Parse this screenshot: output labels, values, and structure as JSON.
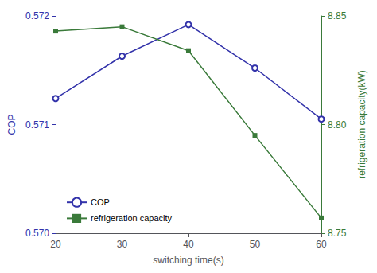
{
  "chart_data": {
    "type": "line",
    "x": [
      20,
      30,
      40,
      50,
      60
    ],
    "series": [
      {
        "name": "COP",
        "color": "#3333aa",
        "marker": "circle",
        "values": [
          0.57124,
          0.57163,
          0.57192,
          0.57152,
          0.57105
        ]
      },
      {
        "name": "refrigeration capacity",
        "color": "#3a7a3a",
        "marker": "square",
        "axis": "y2",
        "values": [
          8.843,
          8.845,
          8.834,
          8.795,
          8.757
        ]
      }
    ],
    "xlabel": "switching time(s)",
    "ylabel": "COP",
    "y2label": "refrigeration capacity(kW)",
    "xlim": [
      20,
      60
    ],
    "xticks": [
      20,
      30,
      40,
      50,
      60
    ],
    "ylim": [
      0.57,
      0.572
    ],
    "yticks": [
      {
        "value": 0.57,
        "label": "0.570"
      },
      0.571,
      0.572
    ],
    "y2lim": [
      8.75,
      8.85
    ],
    "y2ticks": [
      8.75,
      {
        "value": 8.8,
        "label": "8.80"
      },
      8.85
    ],
    "grid": false,
    "legend": "lower left"
  }
}
